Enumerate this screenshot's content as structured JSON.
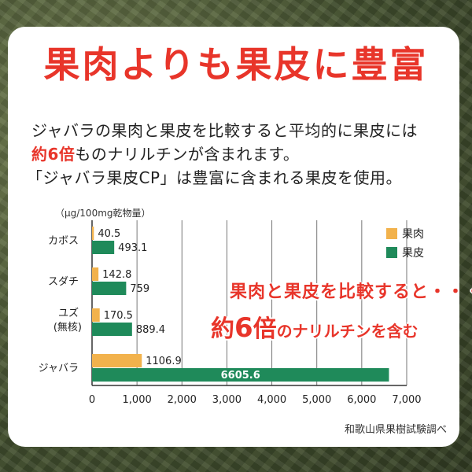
{
  "header": {
    "title": "果肉よりも果皮に豊富"
  },
  "description": {
    "line1": "ジャバラの果肉と果皮を比較すると平均的に果皮には",
    "line2_strong": "約6倍",
    "line2_rest": "ものナリルチンが含まれます。",
    "line3": "「ジャバラ果皮CP」は豊富に含まれる果皮を使用。"
  },
  "callout": {
    "line1": "果肉と果皮を比較すると・・・",
    "line2_a": "約",
    "line2_num": "6",
    "line2_b": "倍",
    "line2_c": "のナリルチンを含む"
  },
  "source": "和歌山県果樹試験調べ",
  "colors": {
    "pulp": "#f2b24c",
    "peel": "#1f8a5a",
    "title": "#e8352a"
  },
  "chart_data": {
    "type": "bar",
    "orientation": "horizontal",
    "unit_label": "（μg/100mg乾物量）",
    "categories": [
      "カボス",
      "スダチ",
      "ユズ",
      "ジャバラ"
    ],
    "category_sub": [
      "",
      "",
      "(無核)",
      ""
    ],
    "series": [
      {
        "name": "果肉",
        "values": [
          40.5,
          142.8,
          170.5,
          1106.9
        ]
      },
      {
        "name": "果皮",
        "values": [
          493.1,
          759,
          889.4,
          6605.6
        ]
      }
    ],
    "value_labels": {
      "果肉": [
        "40.5",
        "142.8",
        "170.5",
        "1106.9"
      ],
      "果皮": [
        "493.1",
        "759",
        "889.4",
        "6605.6"
      ]
    },
    "xlim": [
      0,
      7000
    ],
    "xticks": [
      0,
      1000,
      2000,
      3000,
      4000,
      5000,
      6000,
      7000
    ],
    "xtick_labels": [
      "0",
      "1,000",
      "2,000",
      "3,000",
      "4,000",
      "5,000",
      "6,000",
      "7,000"
    ],
    "grid": true,
    "legend_position": "top-right"
  }
}
